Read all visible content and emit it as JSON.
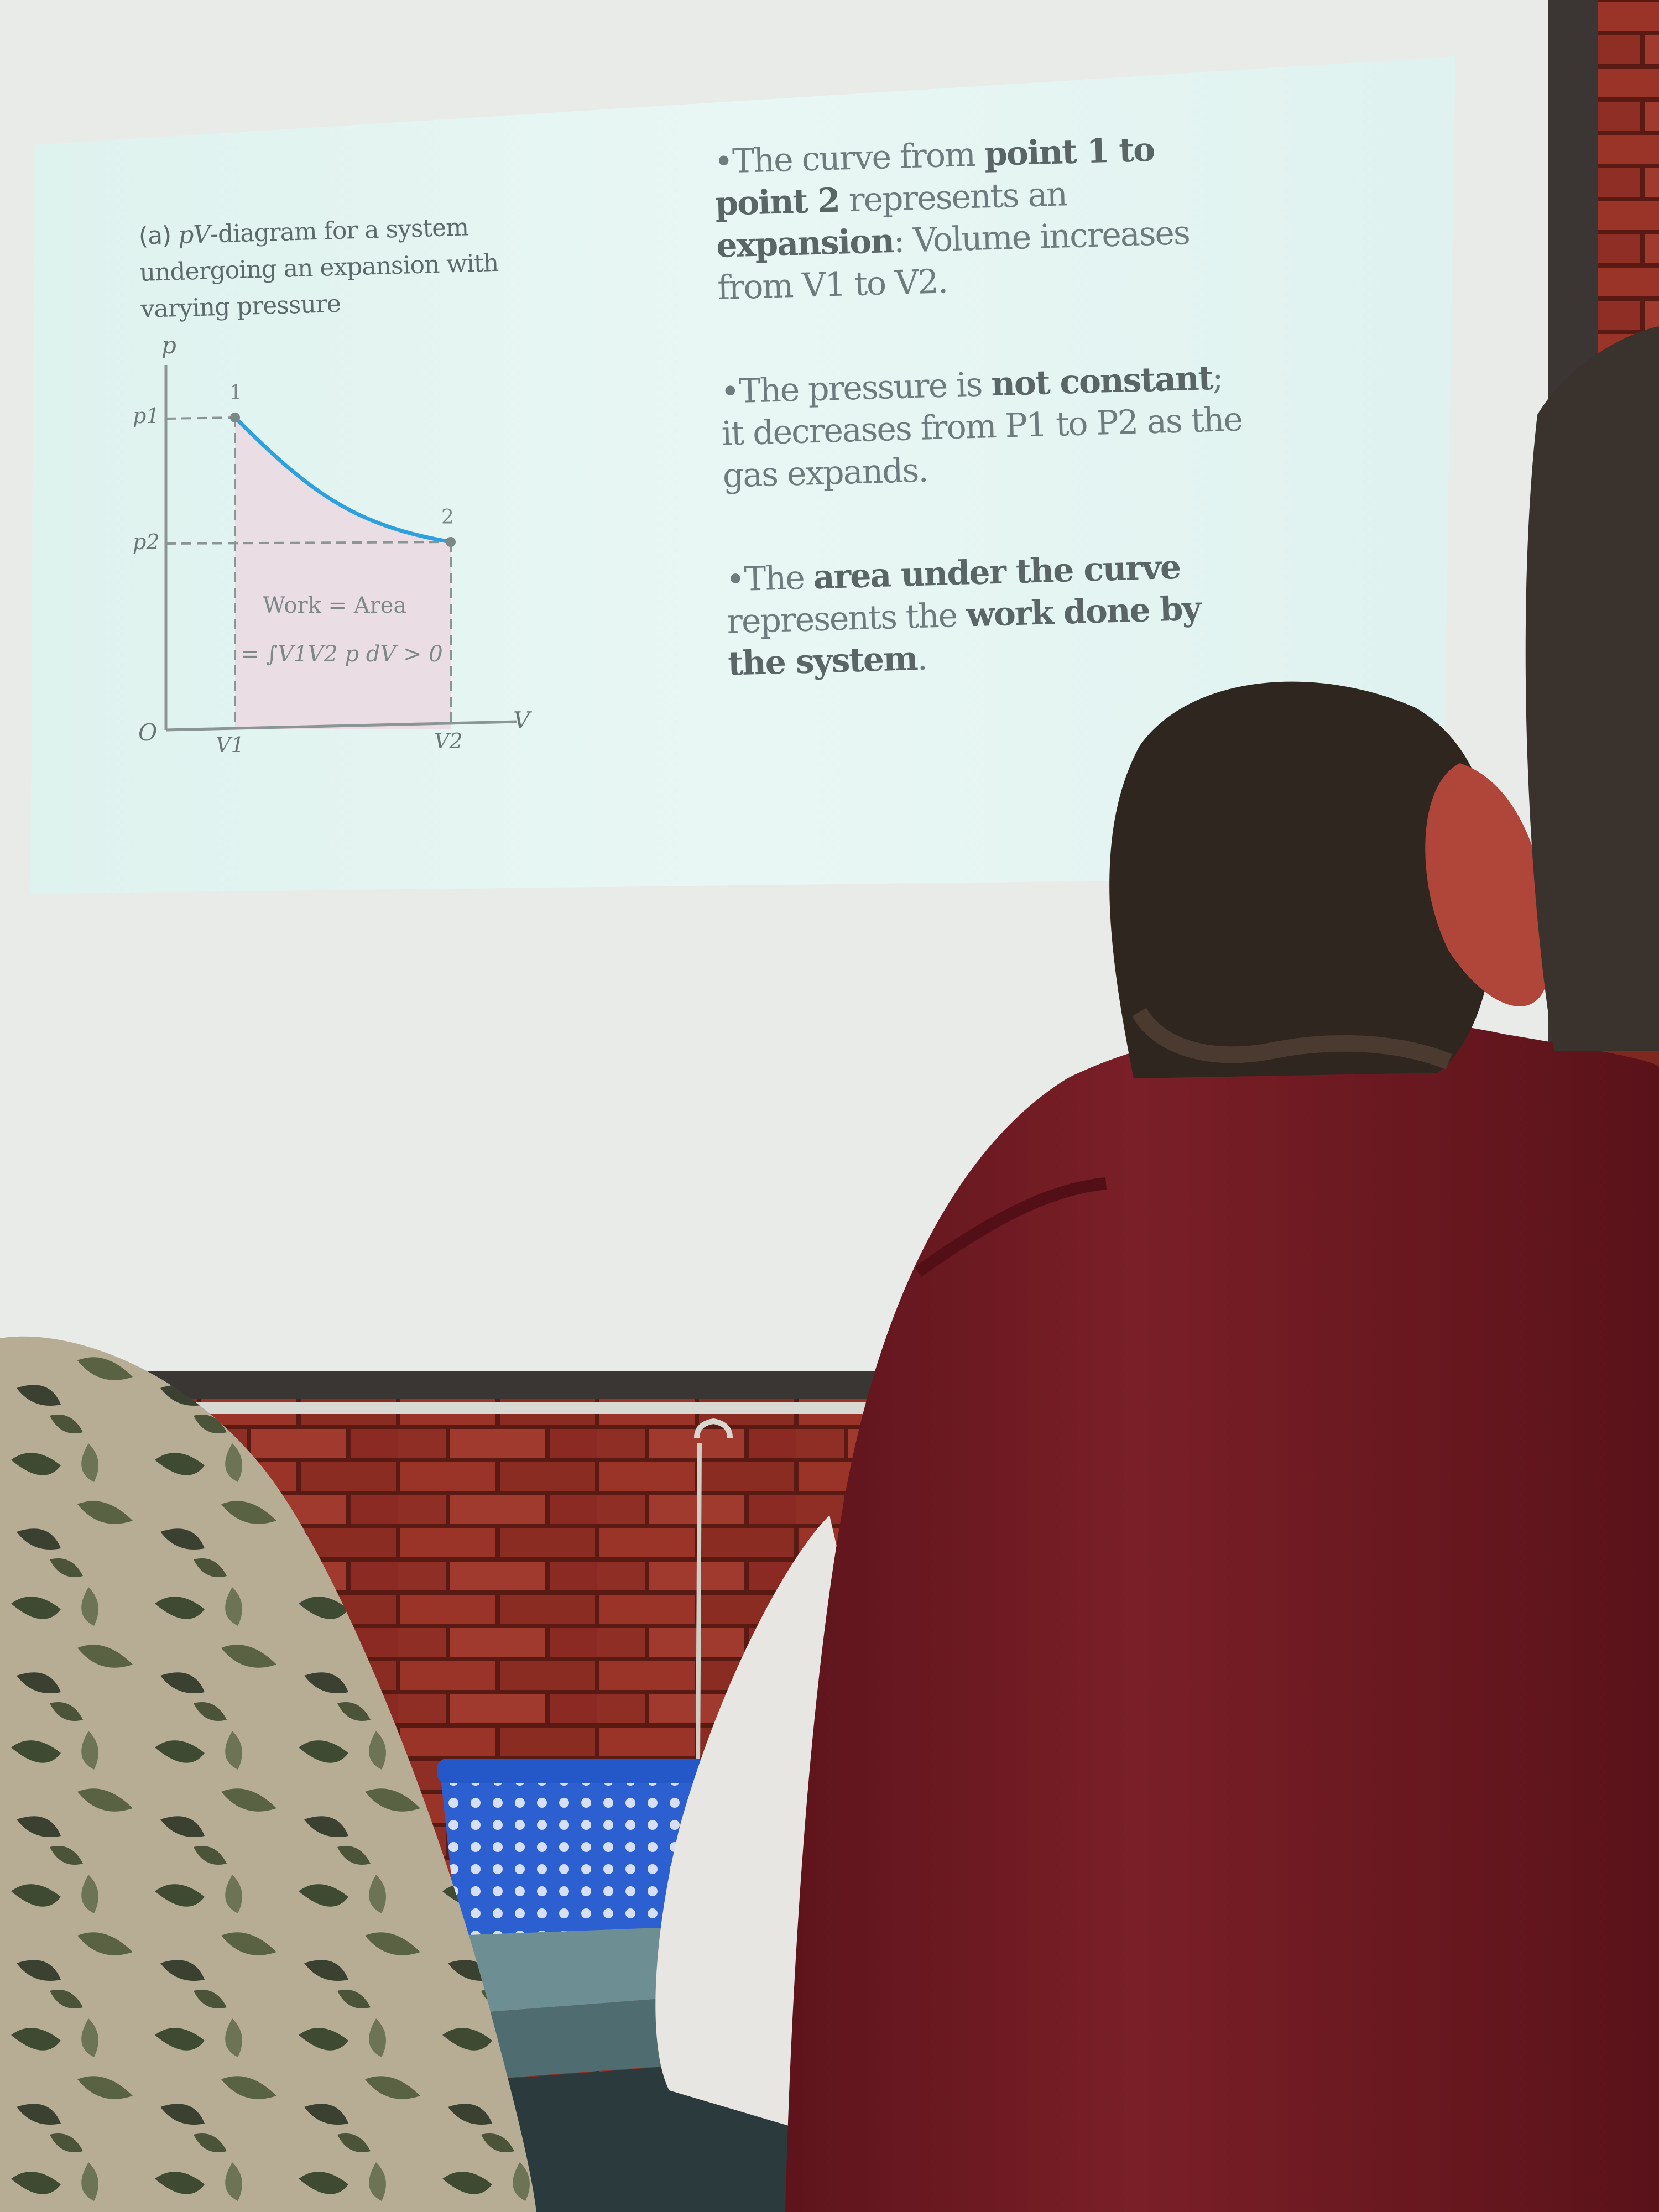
{
  "slide": {
    "caption": {
      "label": "(a)",
      "pv": "pV",
      "rest": "-diagram for a system undergoing an expansion with varying pressure"
    },
    "bullets": [
      {
        "marker": "•",
        "t1": "The curve from ",
        "b1": "point 1 to point 2",
        "t2": " represents an ",
        "b2": "expansion",
        "t3": ": Volume increases from V1 to V2."
      },
      {
        "marker": "•",
        "t1": "The pressure is ",
        "b1": "not constant",
        "t2": "; it decreases from P1 to P2 as the gas expands."
      },
      {
        "marker": "•",
        "t1": "The ",
        "b1": "area under the curve",
        "t2": " represents the ",
        "b2": "work done by the system",
        "t3": "."
      }
    ],
    "plot": {
      "axis_p": "p",
      "axis_v": "V",
      "origin": "O",
      "p1": "p1",
      "p2": "p2",
      "v1": "V1",
      "v2": "V2",
      "point1": "1",
      "point2": "2",
      "work_line1": "Work = Area",
      "work_line2": "= ∫V1V2 p dV > 0"
    }
  },
  "colors": {
    "slide_bg": "#e8f6f2",
    "screen": "#eef0ee",
    "curve": "#2fa0de",
    "area_fill": "#eadde4",
    "brick": "#8a2c24",
    "sweater": "#6e1a22",
    "basket": "#2c5fd0"
  }
}
